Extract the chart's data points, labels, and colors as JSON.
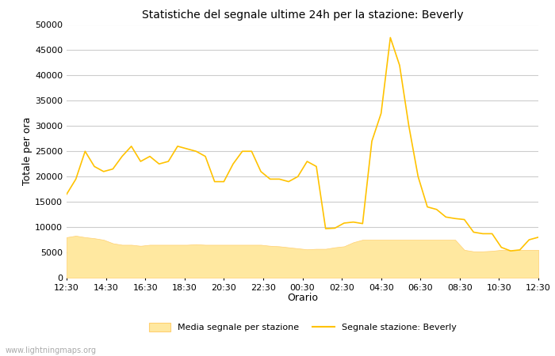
{
  "title": "Statistiche del segnale ultime 24h per la stazione: Beverly",
  "xlabel": "Orario",
  "ylabel": "Totale per ora",
  "background_color": "#ffffff",
  "grid_color": "#cccccc",
  "line_color": "#FFC200",
  "fill_color": "#FFE8A0",
  "fill_edge_color": "#FFD070",
  "ylim": [
    0,
    50000
  ],
  "yticks": [
    0,
    5000,
    10000,
    15000,
    20000,
    25000,
    30000,
    35000,
    40000,
    45000,
    50000
  ],
  "xtick_labels": [
    "12:30",
    "14:30",
    "16:30",
    "18:30",
    "20:30",
    "22:30",
    "00:30",
    "02:30",
    "04:30",
    "06:30",
    "08:30",
    "10:30",
    "12:30"
  ],
  "legend_fill_label": "Media segnale per stazione",
  "legend_line_label": "Segnale stazione: Beverly",
  "watermark": "www.lightningmaps.org",
  "beverly_y": [
    16500,
    19500,
    25000,
    22000,
    21000,
    21500,
    24000,
    26000,
    23000,
    24000,
    22500,
    23000,
    26000,
    25500,
    25000,
    24000,
    19000,
    19000,
    22500,
    25000,
    25000,
    21000,
    19500,
    19500,
    19000,
    20000,
    23000,
    22000,
    9700,
    9800,
    10800,
    11000,
    10700,
    27000,
    32500,
    47500,
    42000,
    30000,
    20000,
    14000,
    13500,
    12000,
    11700,
    11500,
    9000,
    8700,
    8700,
    6000,
    5300,
    5500,
    7500,
    8000
  ],
  "media_y": [
    8000,
    8300,
    8000,
    7800,
    7500,
    6800,
    6500,
    6500,
    6300,
    6500,
    6500,
    6500,
    6500,
    6500,
    6600,
    6500,
    6500,
    6500,
    6500,
    6500,
    6500,
    6500,
    6300,
    6200,
    6000,
    5800,
    5600,
    5700,
    5700,
    6000,
    6200,
    7000,
    7500,
    7500,
    7500,
    7500,
    7500,
    7500,
    7500,
    7500,
    7500,
    7500,
    7500,
    5500,
    5200,
    5200,
    5300,
    5500,
    5400,
    5500,
    5500,
    5500
  ]
}
